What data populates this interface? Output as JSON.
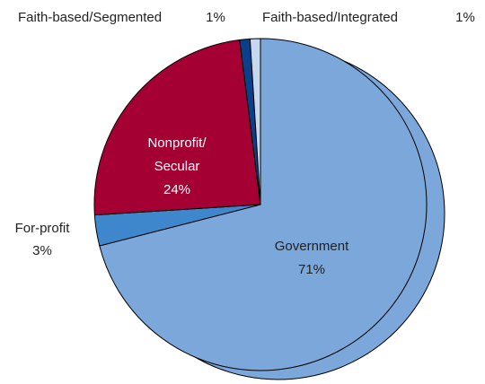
{
  "chart_data": {
    "type": "pie",
    "categories": [
      "Government",
      "For-profit",
      "Nonprofit/Secular",
      "Faith-based/Segmented",
      "Faith-based/Integrated"
    ],
    "values": [
      71,
      3,
      24,
      1,
      1
    ],
    "value_labels": [
      "71%",
      "3%",
      "24%",
      "1%",
      "1%"
    ],
    "colors": [
      "#7ba7db",
      "#3f87cc",
      "#a50034",
      "#0a3f8a",
      "#c5d8ef"
    ]
  }
}
